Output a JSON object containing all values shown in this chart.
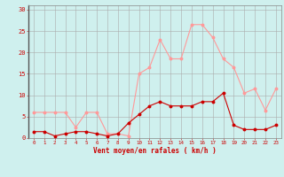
{
  "x": [
    0,
    1,
    2,
    3,
    4,
    5,
    6,
    7,
    8,
    9,
    10,
    11,
    12,
    13,
    14,
    15,
    16,
    17,
    18,
    19,
    20,
    21,
    22,
    23
  ],
  "wind_avg": [
    1.5,
    1.5,
    0.5,
    1.0,
    1.5,
    1.5,
    1.0,
    0.5,
    1.0,
    3.5,
    5.5,
    7.5,
    8.5,
    7.5,
    7.5,
    7.5,
    8.5,
    8.5,
    10.5,
    3.0,
    2.0,
    2.0,
    2.0,
    3.0
  ],
  "wind_gust": [
    6.0,
    6.0,
    6.0,
    6.0,
    2.5,
    6.0,
    6.0,
    1.0,
    1.0,
    0.5,
    15.0,
    16.5,
    23.0,
    18.5,
    18.5,
    26.5,
    26.5,
    23.5,
    18.5,
    16.5,
    10.5,
    11.5,
    6.5,
    11.5
  ],
  "color_avg": "#cc0000",
  "color_gust": "#ff9999",
  "bg_color": "#cff0ee",
  "grid_color": "#aaaaaa",
  "xlabel": "Vent moyen/en rafales ( km/h )",
  "xlabel_color": "#cc0000",
  "tick_color": "#cc0000",
  "yticks": [
    0,
    5,
    10,
    15,
    20,
    25,
    30
  ],
  "ylim": [
    0,
    31
  ],
  "xlim": [
    -0.5,
    23.5
  ]
}
